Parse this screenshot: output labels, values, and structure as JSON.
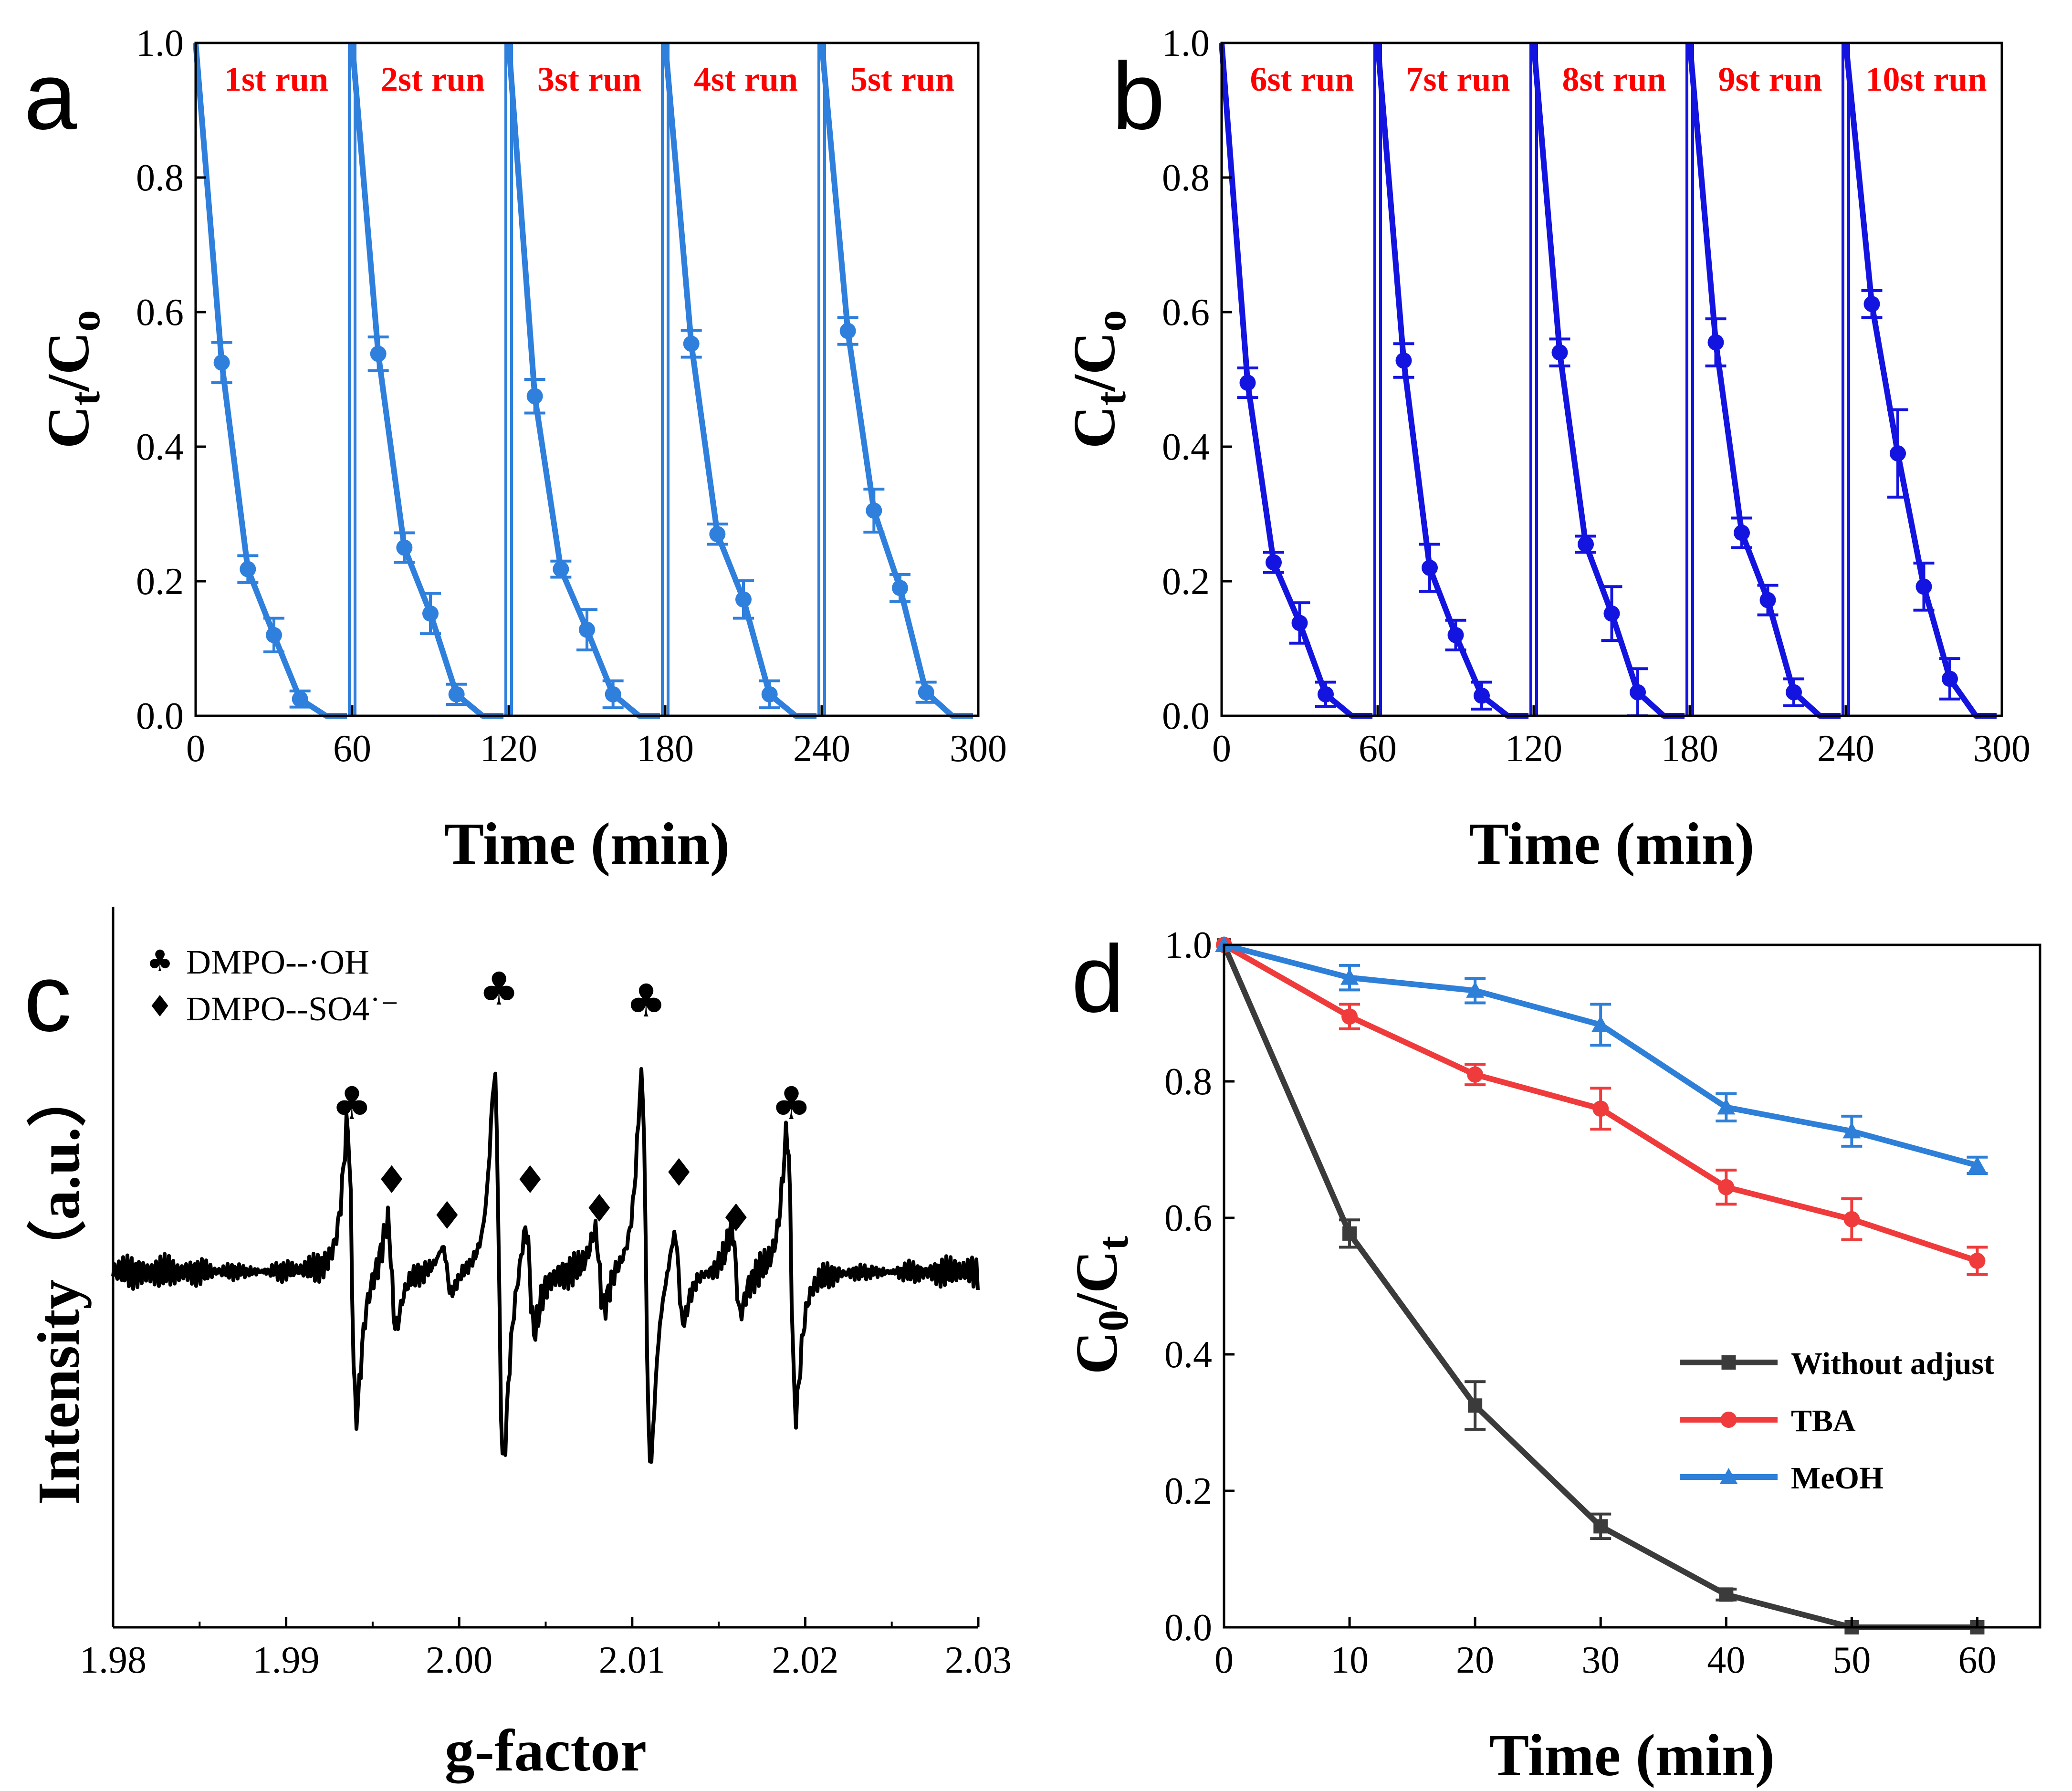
{
  "panel_labels": [
    "a",
    "b",
    "c",
    "d"
  ],
  "colors": {
    "a": "#2f7fdc",
    "b": "#1414e0",
    "without": "#3b3b3b",
    "tba": "#ef3b3b",
    "meoh": "#2d7fd8",
    "run_label": "#ff0000"
  },
  "chart_data": [
    {
      "panel": "a",
      "type": "line",
      "xlabel": "Time (min)",
      "ylabel_main": "C",
      "ylabel_sub": "t",
      "ylabel_sep": "/",
      "ylabel_main2": "C",
      "ylabel_sub2": "o",
      "xlim": [
        0,
        300
      ],
      "ylim": [
        0,
        1.0
      ],
      "xticks": [
        "0",
        "60",
        "120",
        "180",
        "240",
        "300"
      ],
      "yticks": [
        "0.0",
        "0.2",
        "0.4",
        "0.6",
        "0.8",
        "1.0"
      ],
      "run_labels": [
        "1st run",
        "2st run",
        "3st run",
        "4st run",
        "5st run"
      ],
      "separators": [
        60,
        120,
        180,
        240
      ],
      "x": [
        0,
        10,
        20,
        30,
        40,
        50,
        60,
        70,
        80,
        90,
        100,
        110,
        120,
        130,
        140,
        150,
        160,
        170,
        180,
        190,
        200,
        210,
        220,
        230,
        240,
        250,
        260,
        270,
        280,
        290
      ],
      "y": [
        1.0,
        0.525,
        0.218,
        0.12,
        0.025,
        0.0,
        1.0,
        0.538,
        0.25,
        0.152,
        0.032,
        0.0,
        1.0,
        0.475,
        0.218,
        0.128,
        0.032,
        0.0,
        1.0,
        0.553,
        0.27,
        0.173,
        0.032,
        0.0,
        1.0,
        0.572,
        0.305,
        0.19,
        0.035,
        0.0
      ],
      "err": [
        0,
        0.03,
        0.02,
        0.025,
        0.012,
        0,
        0,
        0.025,
        0.022,
        0.03,
        0.015,
        0,
        0,
        0.025,
        0.012,
        0.03,
        0.02,
        0,
        0,
        0.02,
        0.015,
        0.028,
        0.02,
        0,
        0,
        0.02,
        0.032,
        0.02,
        0.015,
        0
      ]
    },
    {
      "panel": "b",
      "type": "line",
      "xlabel": "Time (min)",
      "ylabel_main": "C",
      "ylabel_sub": "t",
      "ylabel_sep": "/",
      "ylabel_main2": "C",
      "ylabel_sub2": "o",
      "xlim": [
        0,
        300
      ],
      "ylim": [
        0,
        1.0
      ],
      "xticks": [
        "0",
        "60",
        "120",
        "180",
        "240",
        "300"
      ],
      "yticks": [
        "0.0",
        "0.2",
        "0.4",
        "0.6",
        "0.8",
        "1.0"
      ],
      "run_labels": [
        "6st run",
        "7st run",
        "8st run",
        "9st run",
        "10st run"
      ],
      "separators": [
        60,
        120,
        180,
        240
      ],
      "x": [
        0,
        10,
        20,
        30,
        40,
        50,
        60,
        70,
        80,
        90,
        100,
        110,
        120,
        130,
        140,
        150,
        160,
        170,
        180,
        190,
        200,
        210,
        220,
        230,
        240,
        250,
        260,
        270,
        280,
        290
      ],
      "y": [
        1.0,
        0.495,
        0.228,
        0.138,
        0.032,
        0.0,
        1.0,
        0.528,
        0.22,
        0.12,
        0.03,
        0.0,
        1.0,
        0.54,
        0.255,
        0.152,
        0.035,
        0.0,
        1.0,
        0.555,
        0.272,
        0.172,
        0.035,
        0.0,
        1.0,
        0.612,
        0.39,
        0.192,
        0.055,
        0.0
      ],
      "err": [
        0,
        0.022,
        0.015,
        0.03,
        0.018,
        0,
        0,
        0.025,
        0.035,
        0.022,
        0.02,
        0,
        0,
        0.02,
        0.012,
        0.04,
        0.035,
        0,
        0,
        0.035,
        0.022,
        0.022,
        0.02,
        0,
        0,
        0.02,
        0.065,
        0.035,
        0.03,
        0
      ]
    },
    {
      "panel": "c",
      "type": "line",
      "xlabel": "g-factor",
      "ylabel": "Intensity（a.u.）",
      "xlim": [
        1.98,
        2.03
      ],
      "xticks": [
        "1.98",
        "1.99",
        "2.00",
        "2.01",
        "2.02",
        "2.03"
      ],
      "legend": [
        {
          "symbol": "♣",
          "label": "DMPO--·OH"
        },
        {
          "symbol": "♦",
          "label": "DMPO--SO4˙⁻"
        }
      ],
      "annotations": {
        "clubs": [
          1.9938,
          2.0023,
          2.0108,
          2.0192
        ],
        "diamonds": [
          1.9961,
          1.9993,
          2.0041,
          2.0081,
          2.0127,
          2.016
        ]
      },
      "peaks": [
        {
          "g": 1.9938,
          "amp": 0.75
        },
        {
          "g": 1.9961,
          "amp": 0.28
        },
        {
          "g": 1.9993,
          "amp": 0.12
        },
        {
          "g": 2.0023,
          "amp": 1.0
        },
        {
          "g": 2.0041,
          "amp": 0.28
        },
        {
          "g": 2.0081,
          "amp": 0.2
        },
        {
          "g": 2.0108,
          "amp": 1.0
        },
        {
          "g": 2.0127,
          "amp": 0.24
        },
        {
          "g": 2.016,
          "amp": 0.22
        },
        {
          "g": 2.0192,
          "amp": 0.72
        }
      ]
    },
    {
      "panel": "d",
      "type": "line",
      "xlabel": "Time (min)",
      "ylabel_main": "C",
      "ylabel_sub": "0",
      "ylabel_sep": "/",
      "ylabel_main2": "C",
      "ylabel_sub2": "t",
      "xlim": [
        0,
        65
      ],
      "ylim": [
        0,
        1.0
      ],
      "xticks": [
        "0",
        "10",
        "20",
        "30",
        "40",
        "50",
        "60"
      ],
      "yticks": [
        "0.0",
        "0.2",
        "0.4",
        "0.6",
        "0.8",
        "1.0"
      ],
      "x": [
        0,
        10,
        20,
        30,
        40,
        50,
        60
      ],
      "legend_position": "bottom-right",
      "series": [
        {
          "name": "Without adjust",
          "marker": "square",
          "values": [
            1.0,
            0.577,
            0.325,
            0.148,
            0.048,
            0.0,
            0.0
          ],
          "err": [
            0,
            0.02,
            0.035,
            0.018,
            0.008,
            0,
            0
          ]
        },
        {
          "name": "TBA",
          "marker": "circle",
          "values": [
            1.0,
            0.895,
            0.81,
            0.76,
            0.645,
            0.598,
            0.537
          ],
          "err": [
            0,
            0.018,
            0.015,
            0.03,
            0.025,
            0.03,
            0.02
          ]
        },
        {
          "name": "MeOH",
          "marker": "triangle",
          "values": [
            1.0,
            0.952,
            0.933,
            0.883,
            0.762,
            0.727,
            0.677
          ],
          "err": [
            0,
            0.018,
            0.018,
            0.03,
            0.02,
            0.022,
            0.012
          ]
        }
      ]
    }
  ]
}
